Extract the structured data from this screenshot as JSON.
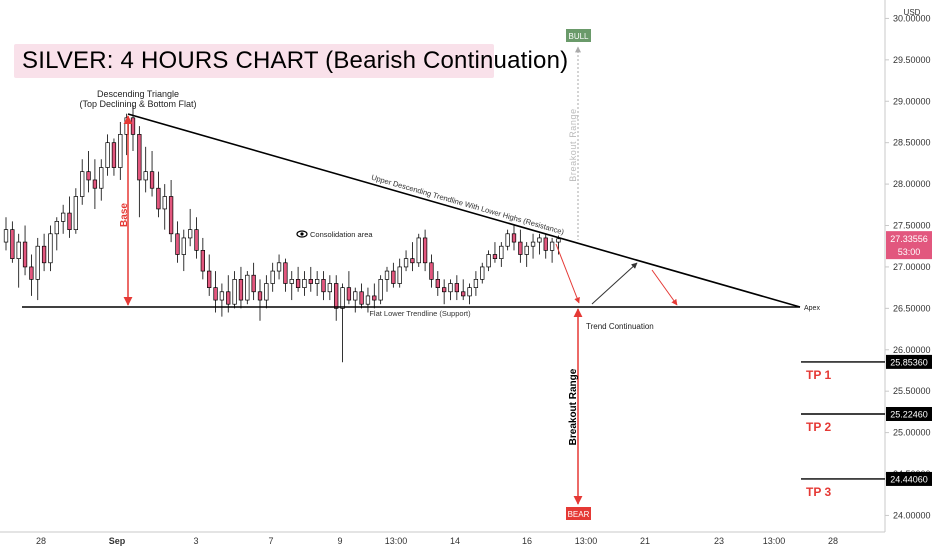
{
  "title": "SILVER: 4 HOURS CHART (Bearish Continuation)",
  "currency": "USD",
  "chart_data": {
    "type": "candlestick",
    "y_axis": {
      "ticks": [
        "30.00000",
        "29.50000",
        "29.00000",
        "28.50000",
        "28.00000",
        "27.50000",
        "27.00000",
        "26.50000",
        "26.00000",
        "25.50000",
        "25.00000",
        "24.50000",
        "24.00000"
      ],
      "min": 23.8,
      "max": 30.15
    },
    "x_axis": {
      "ticks": [
        "28",
        "Sep",
        "3",
        "7",
        "9",
        "13:00",
        "14",
        "16",
        "13:00",
        "21",
        "23",
        "13:00",
        "28"
      ]
    },
    "current_price": "27.33556",
    "countdown": "53:00",
    "targets": [
      {
        "label": "TP 1",
        "price": "25.85360",
        "value": 25.8536
      },
      {
        "label": "TP 2",
        "price": "25.22460",
        "value": 25.2246
      },
      {
        "label": "TP 3",
        "price": "24.44060",
        "value": 24.4406
      }
    ],
    "annotations": {
      "pattern_title": "Descending Triangle",
      "pattern_subtitle": "(Top Declining & Bottom Flat)",
      "base": "Base",
      "upper_trendline": "Upper Descending Trendline With Lower Highs (Resistance)",
      "lower_trendline": "Flat Lower Trendline (Support)",
      "consolidation": "Consolidation area",
      "apex": "Apex",
      "trend_continuation": "Trend Continuation",
      "breakout_range": "Breakout Range",
      "bull": "BULL",
      "bear": "BEAR"
    },
    "support_level": 26.53,
    "resistance_start": {
      "x_index": 0,
      "value": 28.95
    },
    "candles": [
      [
        27.3,
        27.6,
        27.2,
        27.45
      ],
      [
        27.45,
        27.55,
        27.05,
        27.1
      ],
      [
        27.1,
        27.4,
        26.75,
        27.3
      ],
      [
        27.3,
        27.5,
        26.9,
        27.0
      ],
      [
        27.0,
        27.15,
        26.65,
        26.85
      ],
      [
        26.85,
        27.35,
        26.6,
        27.25
      ],
      [
        27.25,
        27.4,
        26.95,
        27.05
      ],
      [
        27.05,
        27.5,
        26.95,
        27.4
      ],
      [
        27.4,
        27.6,
        27.2,
        27.55
      ],
      [
        27.55,
        27.75,
        27.4,
        27.65
      ],
      [
        27.65,
        27.85,
        27.35,
        27.45
      ],
      [
        27.45,
        27.95,
        27.4,
        27.85
      ],
      [
        27.85,
        28.3,
        27.75,
        28.15
      ],
      [
        28.15,
        28.4,
        27.9,
        28.05
      ],
      [
        28.05,
        28.3,
        27.7,
        27.95
      ],
      [
        27.95,
        28.3,
        27.8,
        28.2
      ],
      [
        28.2,
        28.6,
        28.1,
        28.5
      ],
      [
        28.5,
        28.55,
        28.1,
        28.2
      ],
      [
        28.2,
        28.75,
        28.05,
        28.6
      ],
      [
        28.6,
        28.85,
        28.35,
        28.8
      ],
      [
        28.8,
        28.95,
        28.4,
        28.6
      ],
      [
        28.6,
        28.7,
        27.6,
        28.05
      ],
      [
        28.05,
        28.45,
        27.9,
        28.15
      ],
      [
        28.15,
        28.4,
        27.85,
        27.95
      ],
      [
        27.95,
        28.15,
        27.6,
        27.7
      ],
      [
        27.7,
        28.0,
        27.45,
        27.85
      ],
      [
        27.85,
        28.05,
        27.3,
        27.4
      ],
      [
        27.4,
        27.55,
        27.05,
        27.15
      ],
      [
        27.15,
        27.45,
        26.95,
        27.35
      ],
      [
        27.35,
        27.7,
        27.25,
        27.45
      ],
      [
        27.45,
        27.6,
        27.1,
        27.2
      ],
      [
        27.2,
        27.35,
        26.85,
        26.95
      ],
      [
        26.95,
        27.15,
        26.65,
        26.75
      ],
      [
        26.75,
        26.95,
        26.45,
        26.6
      ],
      [
        26.6,
        26.8,
        26.4,
        26.7
      ],
      [
        26.7,
        26.9,
        26.45,
        26.55
      ],
      [
        26.55,
        26.95,
        26.5,
        26.85
      ],
      [
        26.85,
        27.0,
        26.5,
        26.6
      ],
      [
        26.6,
        26.95,
        26.55,
        26.9
      ],
      [
        26.9,
        27.05,
        26.6,
        26.7
      ],
      [
        26.7,
        26.85,
        26.35,
        26.6
      ],
      [
        26.6,
        26.9,
        26.5,
        26.8
      ],
      [
        26.8,
        27.05,
        26.7,
        26.95
      ],
      [
        26.95,
        27.15,
        26.85,
        27.05
      ],
      [
        27.05,
        27.1,
        26.7,
        26.8
      ],
      [
        26.8,
        26.95,
        26.6,
        26.85
      ],
      [
        26.85,
        27.0,
        26.7,
        26.75
      ],
      [
        26.75,
        26.95,
        26.65,
        26.85
      ],
      [
        26.85,
        27.0,
        26.7,
        26.8
      ],
      [
        26.8,
        26.95,
        26.65,
        26.85
      ],
      [
        26.85,
        26.95,
        26.6,
        26.7
      ],
      [
        26.7,
        26.9,
        26.6,
        26.8
      ],
      [
        26.8,
        26.9,
        26.35,
        26.5
      ],
      [
        26.5,
        26.8,
        25.85,
        26.75
      ],
      [
        26.75,
        26.95,
        26.55,
        26.6
      ],
      [
        26.6,
        26.75,
        26.45,
        26.7
      ],
      [
        26.7,
        26.8,
        26.5,
        26.55
      ],
      [
        26.55,
        26.75,
        26.45,
        26.65
      ],
      [
        26.65,
        26.8,
        26.5,
        26.6
      ],
      [
        26.6,
        26.9,
        26.55,
        26.85
      ],
      [
        26.85,
        27.0,
        26.7,
        26.95
      ],
      [
        26.95,
        27.05,
        26.75,
        26.8
      ],
      [
        26.8,
        27.1,
        26.75,
        27.0
      ],
      [
        27.0,
        27.2,
        26.95,
        27.1
      ],
      [
        27.1,
        27.3,
        26.95,
        27.05
      ],
      [
        27.05,
        27.4,
        27.0,
        27.35
      ],
      [
        27.35,
        27.45,
        26.95,
        27.05
      ],
      [
        27.05,
        27.15,
        26.75,
        26.85
      ],
      [
        26.85,
        26.95,
        26.65,
        26.75
      ],
      [
        26.75,
        26.85,
        26.55,
        26.7
      ],
      [
        26.7,
        26.85,
        26.6,
        26.8
      ],
      [
        26.8,
        26.9,
        26.6,
        26.7
      ],
      [
        26.7,
        26.85,
        26.6,
        26.65
      ],
      [
        26.65,
        26.8,
        26.55,
        26.75
      ],
      [
        26.75,
        26.95,
        26.65,
        26.85
      ],
      [
        26.85,
        27.05,
        26.8,
        27.0
      ],
      [
        27.0,
        27.2,
        26.95,
        27.15
      ],
      [
        27.15,
        27.3,
        27.05,
        27.1
      ],
      [
        27.1,
        27.3,
        27.0,
        27.25
      ],
      [
        27.25,
        27.45,
        27.2,
        27.4
      ],
      [
        27.4,
        27.5,
        27.2,
        27.3
      ],
      [
        27.3,
        27.45,
        27.05,
        27.15
      ],
      [
        27.15,
        27.3,
        27.0,
        27.25
      ],
      [
        27.25,
        27.4,
        27.1,
        27.3
      ],
      [
        27.3,
        27.4,
        27.15,
        27.35
      ],
      [
        27.35,
        27.4,
        27.1,
        27.2
      ],
      [
        27.2,
        27.35,
        27.05,
        27.3
      ],
      [
        27.3,
        27.38,
        27.15,
        27.34
      ]
    ]
  }
}
